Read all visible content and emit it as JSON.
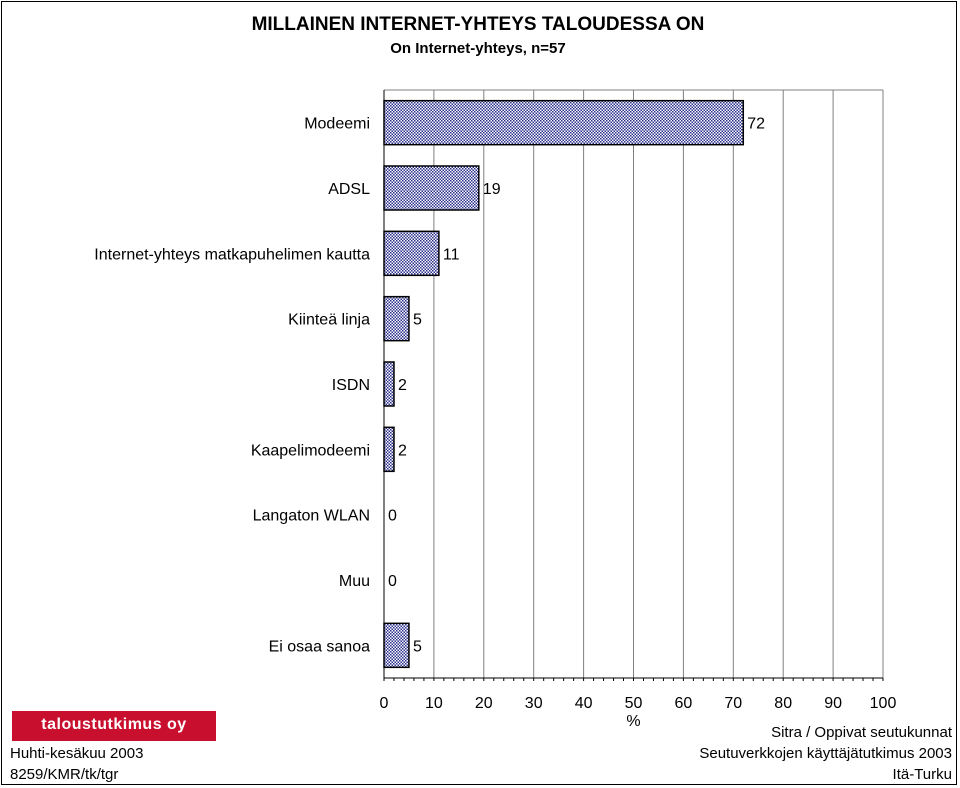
{
  "chart_data": {
    "type": "bar",
    "orientation": "horizontal",
    "title": "MILLAINEN INTERNET-YHTEYS TALOUDESSA ON",
    "subtitle": "On Internet-yhteys, n=57",
    "xlabel": "%",
    "ylabel": "",
    "xlim": [
      0,
      100
    ],
    "x_ticks": [
      0,
      10,
      20,
      30,
      40,
      50,
      60,
      70,
      80,
      90,
      100
    ],
    "grid": "vertical",
    "categories": [
      "Modeemi",
      "ADSL",
      "Internet-yhteys matkapuhelimen kautta",
      "Kiinteä linja",
      "ISDN",
      "Kaapelimodeemi",
      "Langaton WLAN",
      "Muu",
      "Ei osaa sanoa"
    ],
    "values": [
      72,
      19,
      11,
      5,
      2,
      2,
      0,
      0,
      5
    ],
    "value_labels": [
      "72",
      "19",
      "11",
      "5",
      "2",
      "2",
      "0",
      "0",
      "5"
    ],
    "bar_color": "#2b2f8c"
  },
  "footer": {
    "logo": "taloustutkimus oy",
    "date": "Huhti-kesäkuu 2003",
    "code": "8259/KMR/tk/tgr",
    "source_1": "Sitra / Oppivat seutukunnat",
    "source_2": "Seutuverkkojen käyttäjätutkimus 2003",
    "source_3": "Itä-Turku"
  },
  "colors": {
    "logo_bg": "#c8102e",
    "bar": "#2b2f8c"
  }
}
